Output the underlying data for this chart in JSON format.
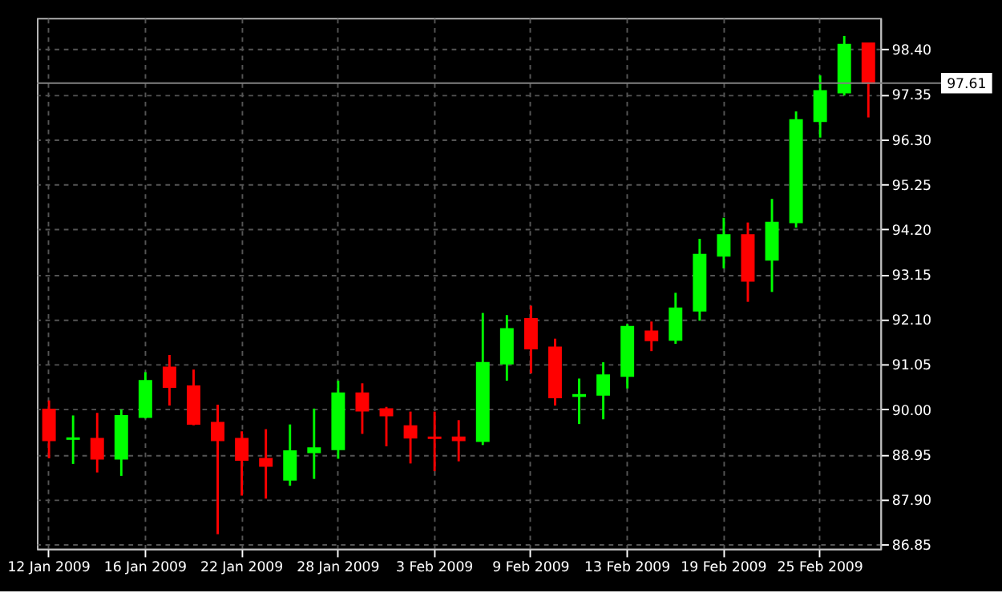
{
  "chart_data": {
    "type": "candlestick",
    "categories": [
      "12 Jan 2009",
      null,
      null,
      null,
      "16 Jan 2009",
      null,
      null,
      null,
      "22 Jan 2009",
      null,
      null,
      null,
      "28 Jan 2009",
      null,
      null,
      null,
      "3 Feb 2009",
      null,
      null,
      null,
      "9 Feb 2009",
      null,
      null,
      null,
      "13 Feb 2009",
      null,
      null,
      null,
      "19 Feb 2009",
      null,
      null,
      null,
      "25 Feb 2009",
      null,
      null
    ],
    "ohlc": [
      [
        90.0,
        90.21,
        88.86,
        89.28
      ],
      [
        89.31,
        89.86,
        88.73,
        89.33
      ],
      [
        89.32,
        89.92,
        88.53,
        88.85
      ],
      [
        88.85,
        90.0,
        88.45,
        89.85
      ],
      [
        89.82,
        90.87,
        89.79,
        90.67
      ],
      [
        90.98,
        91.27,
        90.09,
        90.52
      ],
      [
        90.54,
        90.93,
        89.63,
        89.66
      ],
      [
        89.69,
        90.11,
        87.09,
        89.28
      ],
      [
        89.32,
        89.49,
        87.99,
        88.82
      ],
      [
        88.85,
        89.54,
        87.92,
        88.68
      ],
      [
        88.36,
        89.65,
        88.22,
        89.03
      ],
      [
        89.0,
        90.02,
        88.38,
        89.1
      ],
      [
        89.07,
        90.67,
        88.85,
        90.38
      ],
      [
        90.38,
        90.61,
        89.43,
        89.97
      ],
      [
        90.01,
        90.06,
        89.14,
        89.86
      ],
      [
        89.61,
        89.95,
        88.74,
        89.34
      ],
      [
        89.35,
        89.95,
        88.56,
        89.33
      ],
      [
        89.35,
        89.75,
        88.79,
        89.28
      ],
      [
        89.26,
        92.25,
        89.17,
        91.09
      ],
      [
        91.07,
        92.2,
        90.67,
        91.88
      ],
      [
        92.11,
        92.42,
        90.84,
        91.42
      ],
      [
        91.45,
        91.65,
        90.09,
        90.28
      ],
      [
        90.31,
        90.72,
        89.66,
        90.34
      ],
      [
        90.34,
        91.1,
        89.77,
        90.8
      ],
      [
        90.78,
        91.99,
        90.49,
        91.93
      ],
      [
        91.82,
        92.05,
        91.36,
        91.61
      ],
      [
        91.62,
        92.72,
        91.53,
        92.36
      ],
      [
        92.3,
        93.98,
        92.07,
        93.61
      ],
      [
        93.58,
        94.47,
        93.29,
        94.07
      ],
      [
        94.07,
        94.36,
        92.51,
        93.0
      ],
      [
        93.49,
        94.91,
        92.74,
        94.36
      ],
      [
        94.36,
        96.95,
        94.24,
        96.75
      ],
      [
        96.72,
        97.79,
        96.34,
        97.43
      ],
      [
        97.39,
        98.71,
        97.32,
        98.51
      ],
      [
        98.54,
        98.54,
        96.81,
        97.61
      ]
    ],
    "colors": [
      "#ff0000",
      "#00ff00",
      "#ff0000",
      "#00ff00",
      "#00ff00",
      "#ff0000",
      "#ff0000",
      "#ff0000",
      "#ff0000",
      "#ff0000",
      "#00ff00",
      "#00ff00",
      "#00ff00",
      "#ff0000",
      "#ff0000",
      "#ff0000",
      "#ff0000",
      "#ff0000",
      "#00ff00",
      "#00ff00",
      "#ff0000",
      "#ff0000",
      "#00ff00",
      "#00ff00",
      "#00ff00",
      "#ff0000",
      "#00ff00",
      "#00ff00",
      "#00ff00",
      "#ff0000",
      "#00ff00",
      "#00ff00",
      "#00ff00",
      "#00ff00",
      "#ff0000"
    ],
    "ylim": [
      86.75,
      99.13
    ],
    "yticks": [
      86.85,
      {
        "value": 87.9,
        "label": "87.90"
      },
      88.95,
      {
        "value": 90.0,
        "label": "90.00"
      },
      91.05,
      {
        "value": 92.1,
        "label": "92.10"
      },
      93.15,
      {
        "value": 94.2,
        "label": "94.20"
      },
      95.25,
      {
        "value": 96.3,
        "label": "96.30"
      },
      97.35,
      {
        "value": 98.4,
        "label": "98.40"
      }
    ],
    "ref_lines": [
      {
        "axis": "y",
        "value": 97.61,
        "label": "97.61",
        "color": "#808080"
      }
    ],
    "grid": true
  }
}
